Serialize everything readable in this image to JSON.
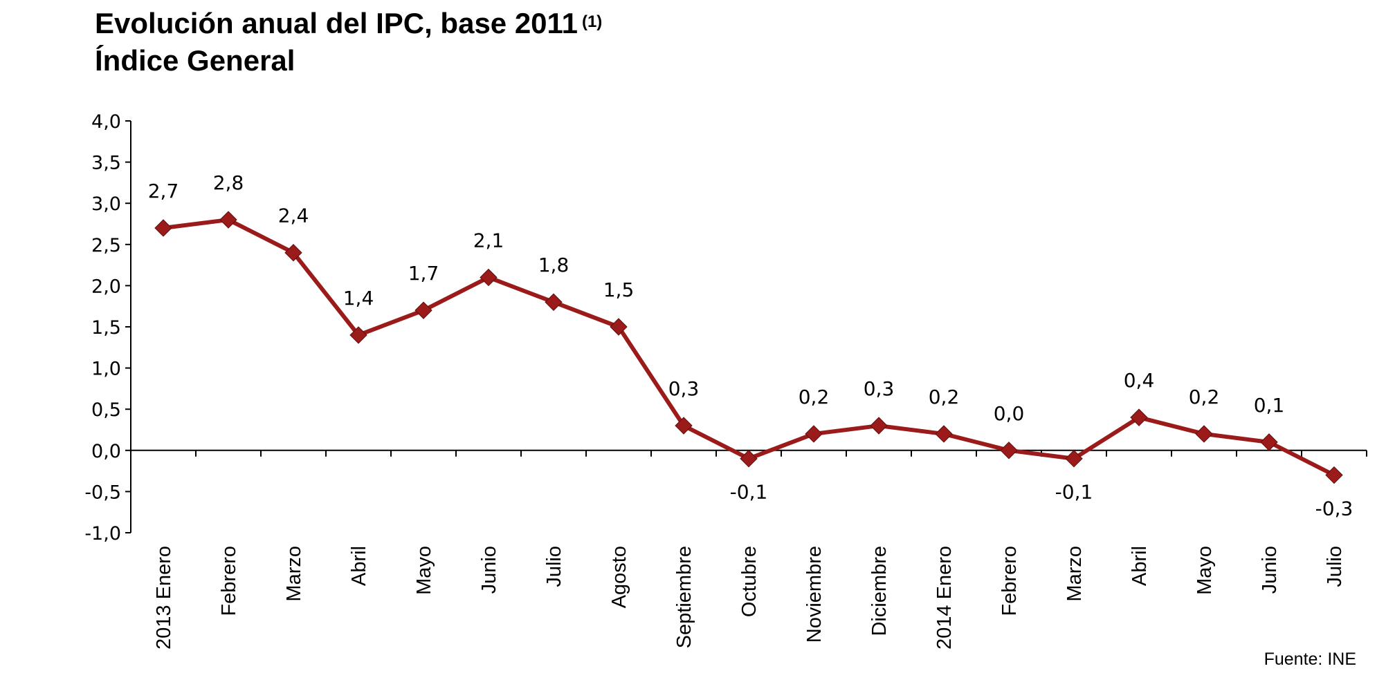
{
  "header": {
    "title": "Evolución anual del IPC, base 2011",
    "title_note": "(1)",
    "subtitle": "Índice General"
  },
  "footer": {
    "source": "Fuente: INE"
  },
  "colors": {
    "series": "#9B1B1B",
    "axis": "#000000"
  },
  "chart_data": {
    "type": "line",
    "title": "Evolución anual del IPC, base 2011 (1)",
    "subtitle": "Índice General",
    "xlabel": "",
    "ylabel": "",
    "ylim": [
      -1.0,
      4.0
    ],
    "ystep": 0.5,
    "grid": false,
    "legend": "none",
    "marker": "diamond",
    "categories": [
      "2013 Enero",
      "Febrero",
      "Marzo",
      "Abril",
      "Mayo",
      "Junio",
      "Julio",
      "Agosto",
      "Septiembre",
      "Octubre",
      "Noviembre",
      "Diciembre",
      "2014 Enero",
      "Febrero",
      "Marzo",
      "Abril",
      "Mayo",
      "Junio",
      "Julio"
    ],
    "yticks": [
      "4,0",
      "3,5",
      "3,0",
      "2,5",
      "2,0",
      "1,5",
      "1,0",
      "0,5",
      "0,0",
      "-0,5",
      "-1,0"
    ],
    "series": [
      {
        "values": [
          2.7,
          2.8,
          2.4,
          1.4,
          1.7,
          2.1,
          1.8,
          1.5,
          0.3,
          -0.1,
          0.2,
          0.3,
          0.2,
          0.0,
          -0.1,
          0.4,
          0.2,
          0.1,
          -0.3
        ],
        "labels": [
          "2,7",
          "2,8",
          "2,4",
          "1,4",
          "1,7",
          "2,1",
          "1,8",
          "1,5",
          "0,3",
          "-0,1",
          "0,2",
          "0,3",
          "0,2",
          "0,0",
          "-0,1",
          "0,4",
          "0,2",
          "0,1",
          "-0,3"
        ]
      }
    ]
  }
}
